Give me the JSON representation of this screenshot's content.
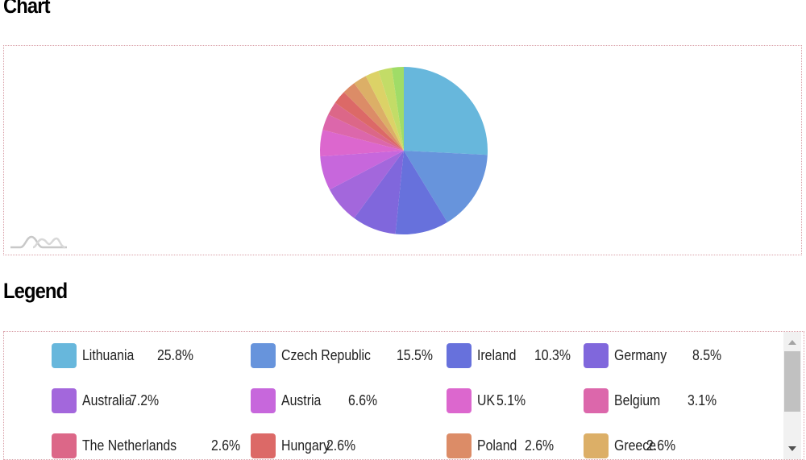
{
  "headings": {
    "chart": "Chart",
    "legend": "Legend"
  },
  "legend": {
    "items": [
      {
        "label": "Lithuania",
        "value": "25.8%",
        "color": "#67b7dc"
      },
      {
        "label": "Czech Republic",
        "value": "15.5%",
        "color": "#6794dc"
      },
      {
        "label": "Ireland",
        "value": "10.3%",
        "color": "#6771dc"
      },
      {
        "label": "Germany",
        "value": "8.5%",
        "color": "#8067dc"
      },
      {
        "label": "Australia",
        "value": "7.2%",
        "color": "#a367dc"
      },
      {
        "label": "Austria",
        "value": "6.6%",
        "color": "#c767dc"
      },
      {
        "label": "UK",
        "value": "5.1%",
        "color": "#dc67ce"
      },
      {
        "label": "Belgium",
        "value": "3.1%",
        "color": "#dc67ab"
      },
      {
        "label": "The Netherlands",
        "value": "2.6%",
        "color": "#dc6788"
      },
      {
        "label": "Hungary",
        "value": "2.6%",
        "color": "#dc6967"
      },
      {
        "label": "Poland",
        "value": "2.6%",
        "color": "#dc8c67"
      },
      {
        "label": "Greece",
        "value": "2.6%",
        "color": "#dcaf67"
      }
    ]
  },
  "chart_data": {
    "type": "pie",
    "title": "Chart",
    "legend_position": "bottom (separate scrollable container)",
    "categories": [
      "Lithuania",
      "Czech Republic",
      "Ireland",
      "Germany",
      "Australia",
      "Austria",
      "UK",
      "Belgium",
      "The Netherlands",
      "Hungary",
      "Poland",
      "Greece",
      "",
      "",
      ""
    ],
    "values": [
      25.8,
      15.5,
      10.3,
      8.5,
      7.2,
      6.6,
      5.1,
      3.1,
      2.6,
      2.6,
      2.6,
      2.6,
      2.6,
      2.6,
      2.3
    ],
    "colors": [
      "#67b7dc",
      "#6794dc",
      "#6771dc",
      "#8067dc",
      "#a367dc",
      "#c767dc",
      "#dc67ce",
      "#dc67ab",
      "#dc6788",
      "#dc6967",
      "#dc8c67",
      "#dcaf67",
      "#dcd267",
      "#c3dc67",
      "#a0dc67"
    ],
    "unit": "%",
    "start_angle": -90
  }
}
